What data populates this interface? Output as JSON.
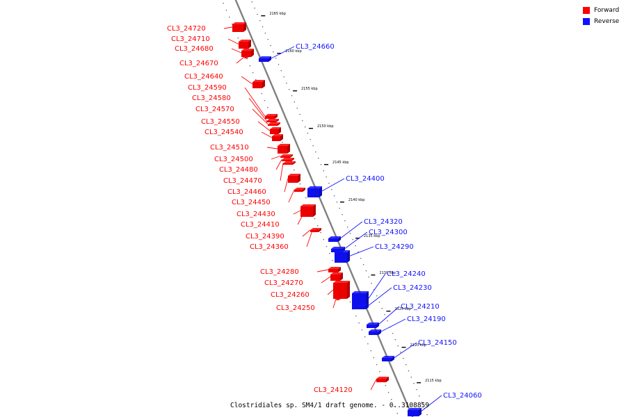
{
  "legend": {
    "forward_label": "Forward",
    "reverse_label": "Reverse",
    "forward_color": "#ff0000",
    "reverse_color": "#1010ff"
  },
  "caption": "Clostridiales sp. SM4/1 draft genome. - 0..3108859",
  "scale_unit": "kbp",
  "ticks": [
    2165,
    2160,
    2155,
    2150,
    2145,
    2140,
    2135,
    2130,
    2125,
    2120,
    2115
  ],
  "genes": [
    {
      "name": "CL3_24720",
      "strand": "forward"
    },
    {
      "name": "CL3_24710",
      "strand": "forward"
    },
    {
      "name": "CL3_24680",
      "strand": "forward"
    },
    {
      "name": "CL3_24670",
      "strand": "forward"
    },
    {
      "name": "CL3_24660",
      "strand": "reverse"
    },
    {
      "name": "CL3_24640",
      "strand": "forward"
    },
    {
      "name": "CL3_24590",
      "strand": "forward"
    },
    {
      "name": "CL3_24580",
      "strand": "forward"
    },
    {
      "name": "CL3_24570",
      "strand": "forward"
    },
    {
      "name": "CL3_24550",
      "strand": "forward"
    },
    {
      "name": "CL3_24540",
      "strand": "forward"
    },
    {
      "name": "CL3_24510",
      "strand": "forward"
    },
    {
      "name": "CL3_24500",
      "strand": "forward"
    },
    {
      "name": "CL3_24480",
      "strand": "forward"
    },
    {
      "name": "CL3_24470",
      "strand": "forward"
    },
    {
      "name": "CL3_24460",
      "strand": "forward"
    },
    {
      "name": "CL3_24450",
      "strand": "forward"
    },
    {
      "name": "CL3_24430",
      "strand": "forward"
    },
    {
      "name": "CL3_24410",
      "strand": "forward"
    },
    {
      "name": "CL3_24400",
      "strand": "reverse"
    },
    {
      "name": "CL3_24390",
      "strand": "forward"
    },
    {
      "name": "CL3_24360",
      "strand": "forward"
    },
    {
      "name": "CL3_24320",
      "strand": "reverse"
    },
    {
      "name": "CL3_24300",
      "strand": "reverse"
    },
    {
      "name": "CL3_24290",
      "strand": "reverse"
    },
    {
      "name": "CL3_24280",
      "strand": "forward"
    },
    {
      "name": "CL3_24270",
      "strand": "forward"
    },
    {
      "name": "CL3_24260",
      "strand": "forward"
    },
    {
      "name": "CL3_24250",
      "strand": "forward"
    },
    {
      "name": "CL3_24240",
      "strand": "reverse"
    },
    {
      "name": "CL3_24230",
      "strand": "reverse"
    },
    {
      "name": "CL3_24210",
      "strand": "reverse"
    },
    {
      "name": "CL3_24190",
      "strand": "reverse"
    },
    {
      "name": "CL3_24150",
      "strand": "reverse"
    },
    {
      "name": "CL3_24120",
      "strand": "forward"
    },
    {
      "name": "CL3_24060",
      "strand": "reverse"
    }
  ]
}
